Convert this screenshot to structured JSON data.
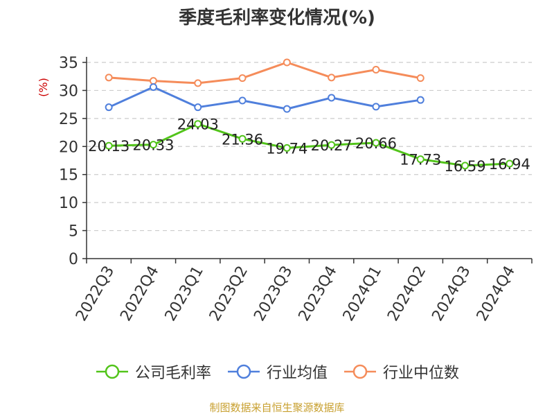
{
  "chart_data": {
    "type": "line",
    "title": "季度毛利率变化情况(%)",
    "ylabel": "(%)",
    "categories": [
      "2022Q3",
      "2022Q4",
      "2023Q1",
      "2023Q2",
      "2023Q3",
      "2023Q4",
      "2024Q1",
      "2024Q2",
      "2024Q3",
      "2024Q4"
    ],
    "ylim": [
      0,
      35
    ],
    "yticks": [
      0,
      5,
      10,
      15,
      20,
      25,
      30,
      35
    ],
    "grid": true,
    "legend_position": "bottom",
    "series": [
      {
        "name": "公司毛利率",
        "color": "#52c41a",
        "values": [
          20.13,
          20.33,
          24.03,
          21.36,
          19.74,
          20.27,
          20.66,
          17.73,
          16.59,
          16.94
        ],
        "data_labels": [
          "20.13",
          "20.33",
          "24.03",
          "21.36",
          "19.74",
          "20.27",
          "20.66",
          "17.73",
          "16.59",
          "16.94"
        ]
      },
      {
        "name": "行业均值",
        "color": "#4f7fdc",
        "values": [
          27.0,
          30.6,
          27.0,
          28.2,
          26.7,
          28.7,
          27.1,
          28.3,
          null,
          null
        ]
      },
      {
        "name": "行业中位数",
        "color": "#f58c5a",
        "values": [
          32.3,
          31.7,
          31.3,
          32.2,
          35.0,
          32.3,
          33.7,
          32.2,
          null,
          null
        ]
      }
    ]
  },
  "colors": {
    "title": "#333333",
    "axis": "#333333",
    "grid": "#cccccc",
    "ylabel": "#cc0000",
    "source": "#c8a030"
  },
  "source_note": "制图数据来自恒生聚源数据库"
}
